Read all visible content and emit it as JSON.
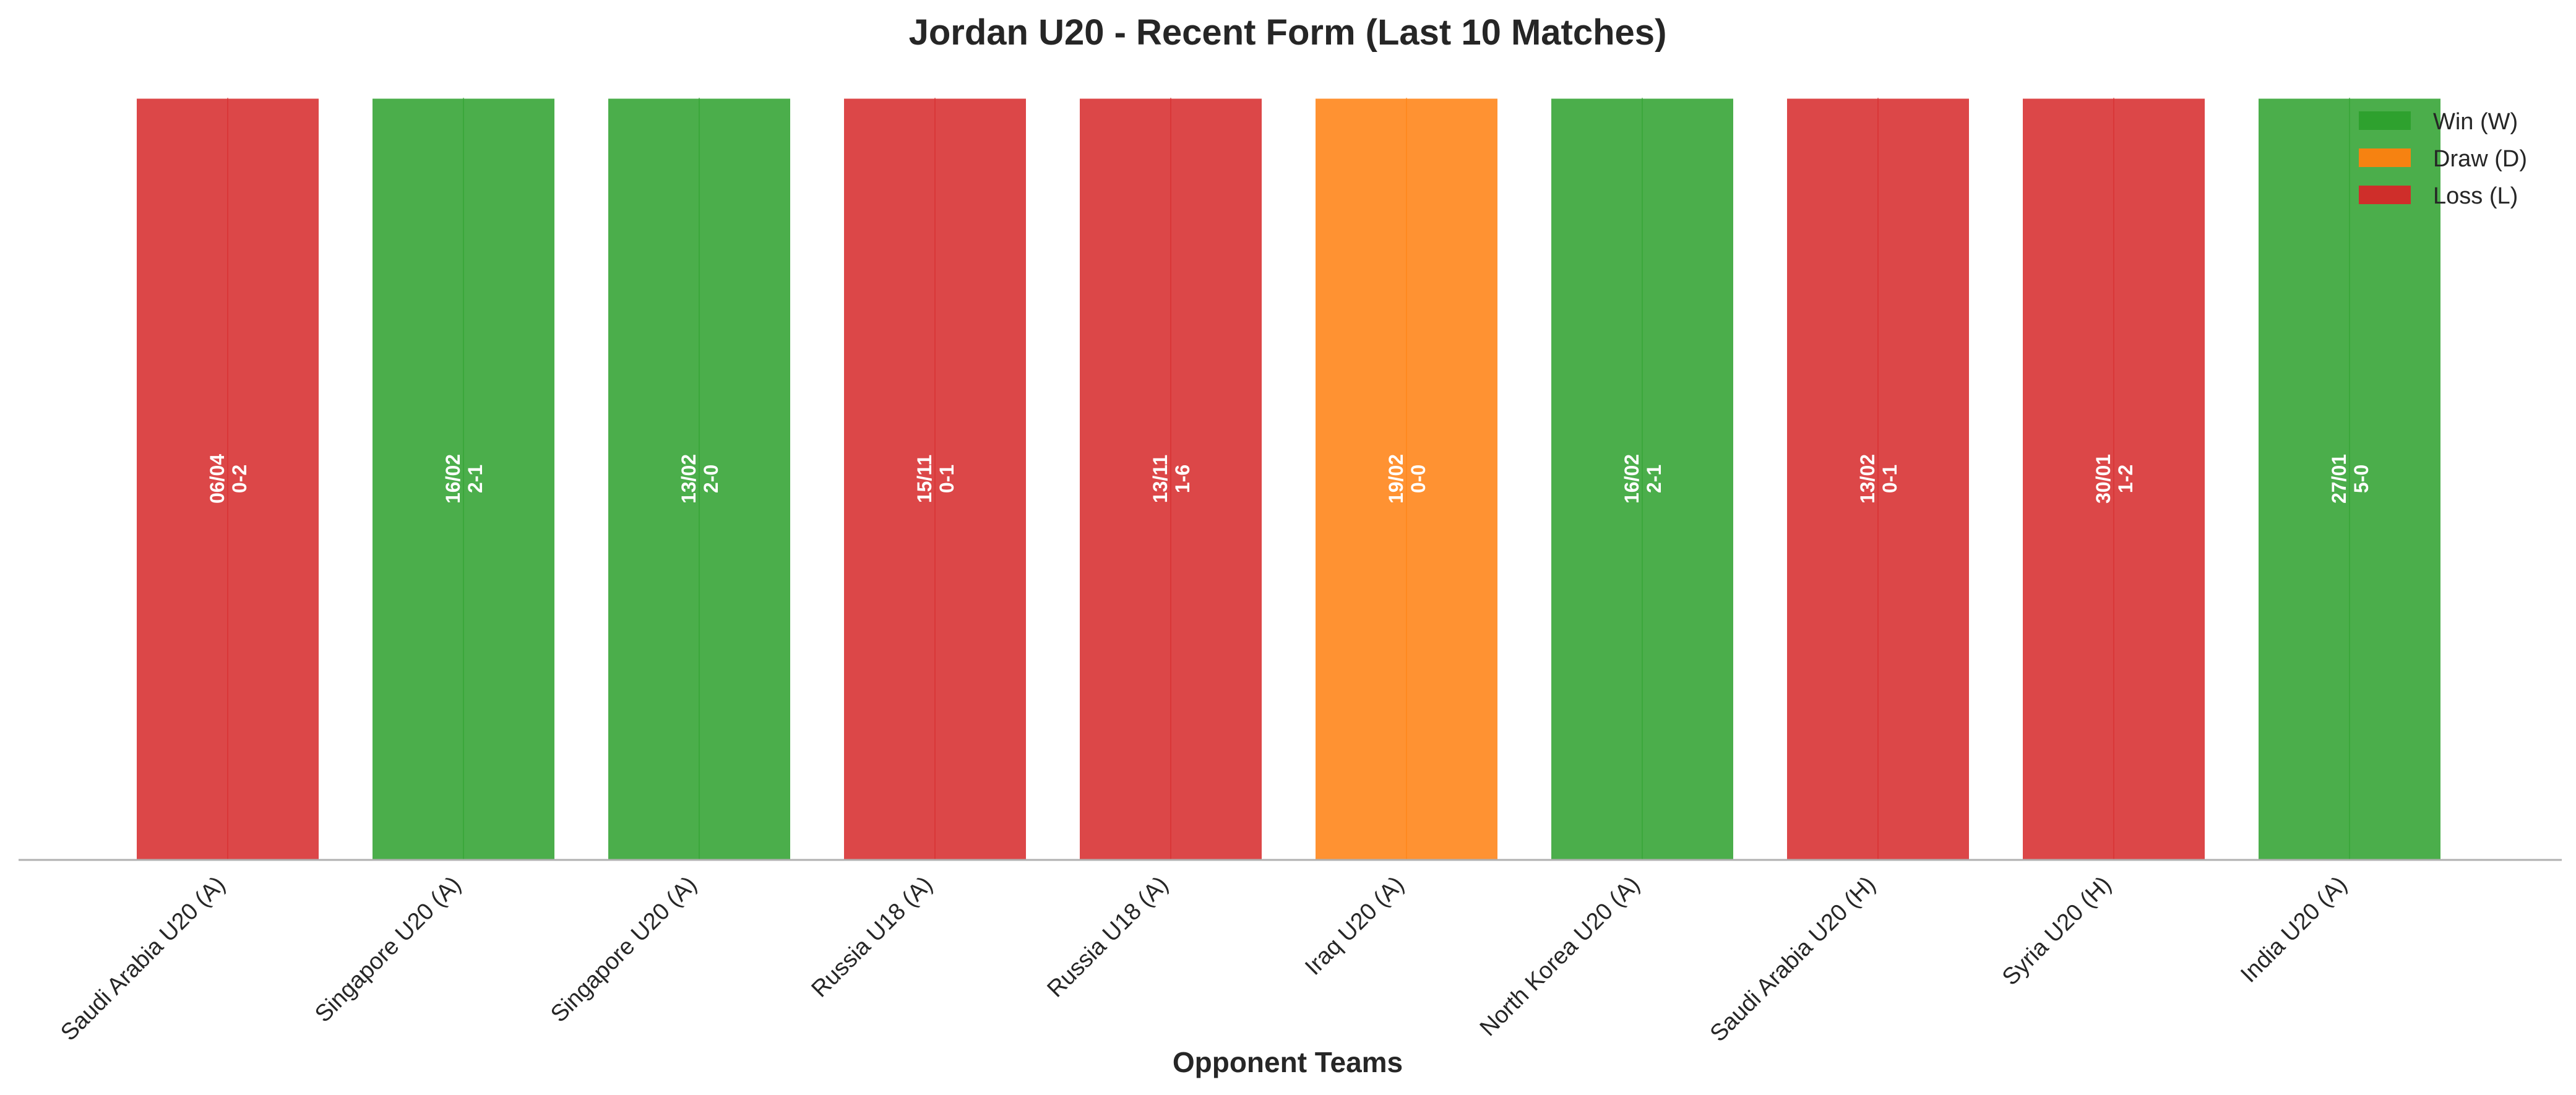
{
  "chart_data": {
    "type": "bar",
    "title": "Jordan U20 - Recent Form (Last 10 Matches)",
    "xlabel": "Opponent Teams",
    "ylabel": "",
    "grid": false,
    "legend_position": "top-right",
    "categories": [
      "Saudi Arabia U20 (A)",
      "Singapore U20 (A)",
      "Singapore U20 (A)",
      "Russia U18 (A)",
      "Russia U18 (A)",
      "Iraq U20 (A)",
      "North Korea U20 (A)",
      "Saudi Arabia U20 (H)",
      "Syria U20 (H)",
      "India U20 (A)"
    ],
    "values": [
      1,
      1,
      1,
      1,
      1,
      1,
      1,
      1,
      1,
      1
    ],
    "results": [
      "L",
      "W",
      "W",
      "L",
      "L",
      "D",
      "W",
      "L",
      "L",
      "W"
    ],
    "dates": [
      "06/04",
      "16/02",
      "13/02",
      "15/11",
      "13/11",
      "19/02",
      "16/02",
      "13/02",
      "30/01",
      "27/01"
    ],
    "scores": [
      "0-2",
      "2-1",
      "2-0",
      "0-1",
      "1-6",
      "0-0",
      "2-1",
      "0-1",
      "1-2",
      "5-0"
    ],
    "legend": [
      {
        "key": "W",
        "label": "Win (W)",
        "color": "#2ca02c"
      },
      {
        "key": "D",
        "label": "Draw (D)",
        "color": "#ff7f0e"
      },
      {
        "key": "L",
        "label": "Loss (L)",
        "color": "#d62728"
      }
    ],
    "ylim": [
      0,
      1
    ]
  }
}
